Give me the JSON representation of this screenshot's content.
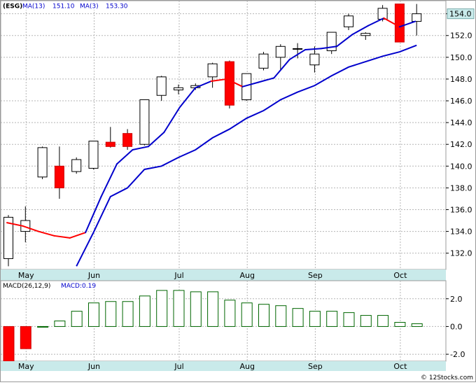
{
  "chart_data": [
    {
      "type": "candlestick",
      "ticker": "ESG",
      "legend": [
        {
          "label": "(ESG)",
          "color": "#000000"
        },
        {
          "label": "MA(13)",
          "value": "151.10",
          "color": "#0000cc"
        },
        {
          "label": "MA(3)",
          "value": "153.30",
          "color": "#0000cc"
        }
      ],
      "last_price_label": "154.0",
      "y_ticks": [
        "132.0",
        "134.0",
        "136.0",
        "138.0",
        "140.0",
        "142.0",
        "144.0",
        "146.0",
        "148.0",
        "150.0",
        "152.0",
        "154.0"
      ],
      "ylim": [
        130.5,
        155.2
      ],
      "x_months": [
        "May",
        "Jun",
        "Jul",
        "Aug",
        "Sep",
        "Oct"
      ],
      "month_start_index": [
        1,
        5,
        10,
        14,
        18,
        23
      ],
      "colors": {
        "up": "#ffffff",
        "down": "#ff0000",
        "ma13": "#0000cc",
        "ma3_up": "#0000cc",
        "ma3_down": "#ff0000"
      },
      "candles": [
        {
          "o": 131.5,
          "h": 135.5,
          "l": 130.8,
          "c": 135.3
        },
        {
          "o": 134.0,
          "h": 136.3,
          "l": 133.0,
          "c": 135.0
        },
        {
          "o": 139.0,
          "h": 141.8,
          "l": 138.8,
          "c": 141.7
        },
        {
          "o": 140.0,
          "h": 141.8,
          "l": 137.0,
          "c": 138.0
        },
        {
          "o": 139.5,
          "h": 140.8,
          "l": 139.3,
          "c": 140.6
        },
        {
          "o": 139.8,
          "h": 142.3,
          "l": 139.7,
          "c": 142.3
        },
        {
          "o": 142.2,
          "h": 143.6,
          "l": 141.7,
          "c": 141.8
        },
        {
          "o": 143.0,
          "h": 143.4,
          "l": 141.5,
          "c": 141.8
        },
        {
          "o": 142.0,
          "h": 146.1,
          "l": 141.9,
          "c": 146.1
        },
        {
          "o": 146.5,
          "h": 148.3,
          "l": 146.0,
          "c": 148.2
        },
        {
          "o": 147.0,
          "h": 147.5,
          "l": 146.6,
          "c": 147.2
        },
        {
          "o": 147.2,
          "h": 147.6,
          "l": 147.0,
          "c": 147.4
        },
        {
          "o": 148.2,
          "h": 149.5,
          "l": 147.2,
          "c": 149.4
        },
        {
          "o": 149.6,
          "h": 149.7,
          "l": 145.3,
          "c": 145.6
        },
        {
          "o": 146.1,
          "h": 148.5,
          "l": 146.0,
          "c": 148.5
        },
        {
          "o": 149.0,
          "h": 150.5,
          "l": 148.8,
          "c": 150.3
        },
        {
          "o": 150.0,
          "h": 151.2,
          "l": 148.8,
          "c": 151.0
        },
        {
          "o": 150.8,
          "h": 151.3,
          "l": 149.9,
          "c": 150.8
        },
        {
          "o": 149.3,
          "h": 151.0,
          "l": 148.6,
          "c": 150.3
        },
        {
          "o": 150.6,
          "h": 152.3,
          "l": 150.3,
          "c": 152.3
        },
        {
          "o": 152.8,
          "h": 154.0,
          "l": 152.5,
          "c": 153.8
        },
        {
          "o": 152.0,
          "h": 152.3,
          "l": 151.6,
          "c": 152.2
        },
        {
          "o": 153.5,
          "h": 154.8,
          "l": 153.3,
          "c": 154.5
        },
        {
          "o": 154.9,
          "h": 154.9,
          "l": 151.4,
          "c": 151.4
        },
        {
          "o": 153.3,
          "h": 154.9,
          "l": 152.0,
          "c": 154.0
        }
      ],
      "ma13": [
        130.8,
        133.9,
        137.2,
        138.0,
        139.7,
        140.0,
        140.8,
        141.5,
        142.6,
        143.4,
        144.4,
        145.1,
        146.1,
        146.8,
        147.4,
        148.3,
        149.1,
        149.6,
        150.1,
        150.5,
        151.1
      ],
      "ma3": [
        134.8,
        134.5,
        134.0,
        133.6,
        133.4,
        133.9,
        137.2,
        140.2,
        141.5,
        141.8,
        143.1,
        145.4,
        147.2,
        147.8,
        148.0,
        147.3,
        147.7,
        148.1,
        149.8,
        150.7,
        150.8,
        151.0,
        152.1,
        152.9,
        153.6,
        152.8,
        153.3
      ],
      "ma3_down_segments": [
        [
          0,
          5
        ],
        [
          13,
          15
        ],
        [
          24,
          25
        ]
      ]
    },
    {
      "type": "bar",
      "title": "MACD(26,12,9)",
      "macd_label": "MACD:0.19",
      "y_ticks": [
        "-2.0",
        "0.0",
        "2.0"
      ],
      "ylim": [
        -2.5,
        3.3
      ],
      "values": [
        -2.5,
        -1.6,
        0.0,
        0.4,
        1.1,
        1.7,
        1.8,
        1.8,
        2.2,
        2.6,
        2.6,
        2.5,
        2.5,
        1.9,
        1.7,
        1.6,
        1.5,
        1.3,
        1.1,
        1.1,
        1.0,
        0.8,
        0.8,
        0.3,
        0.2
      ],
      "colors": {
        "positive": "#006600",
        "negative": "#ff0000"
      }
    }
  ],
  "footer": {
    "copyright": "© 12Stocks.com"
  }
}
